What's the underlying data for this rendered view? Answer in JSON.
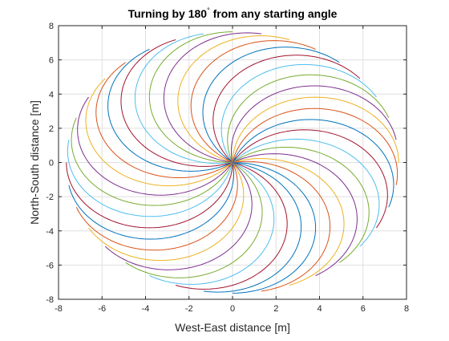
{
  "chart_data": {
    "type": "line",
    "title_main": "Turning by 180",
    "title_sup": "°",
    "title_rest": " from any starting angle",
    "xlabel": "West-East distance [m]",
    "ylabel": "North-South distance [m]",
    "xlim": [
      -8,
      8
    ],
    "ylim": [
      -8,
      8
    ],
    "xticks": [
      -8,
      -6,
      -4,
      -2,
      0,
      2,
      4,
      6,
      8
    ],
    "yticks": [
      -8,
      -6,
      -4,
      -2,
      0,
      2,
      4,
      6,
      8
    ],
    "grid": true,
    "curve_family": {
      "start_point": [
        0,
        0
      ],
      "turn_angle_deg": 180,
      "turn_radius_m": 3.82,
      "start_heading_step_deg": 10,
      "curve_count": 36
    },
    "colors": [
      "#0072BD",
      "#D95319",
      "#EDB120",
      "#7E2F8E",
      "#77AC30",
      "#4DBEEE",
      "#A2142F"
    ]
  }
}
